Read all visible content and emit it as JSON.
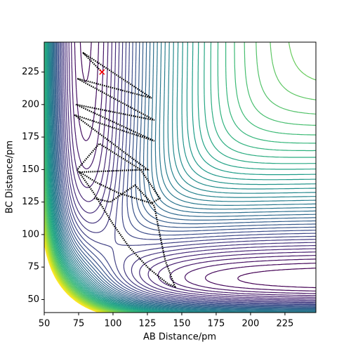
{
  "chart_data": {
    "type": "contour-trajectory",
    "xlabel": "AB Distance/pm",
    "ylabel": "BC Distance/pm",
    "xlim": [
      50,
      247.5
    ],
    "ylim": [
      40,
      248
    ],
    "xticks": [
      50,
      75,
      100,
      125,
      150,
      175,
      200,
      225
    ],
    "yticks": [
      50,
      75,
      100,
      125,
      150,
      175,
      200,
      225
    ],
    "grid": false,
    "series": [
      {
        "color": "#000000",
        "x": [
          92,
          78,
          128,
          74,
          130,
          73,
          130,
          72,
          125,
          76,
          88,
          104,
          128,
          134,
          120,
          90,
          74,
          86,
          100,
          112,
          126,
          140,
          145,
          138,
          134,
          130,
          116,
          98,
          86
        ],
        "values": [
          225,
          240,
          205,
          220,
          188,
          200,
          172,
          192,
          150,
          148,
          140,
          132,
          124,
          128,
          150,
          170,
          150,
          132,
          108,
          90,
          74,
          62,
          60,
          80,
          100,
          122,
          138,
          125,
          128
        ]
      },
      {
        "color": "#ff0000",
        "x": [
          92
        ],
        "values": [
          225
        ]
      }
    ]
  }
}
